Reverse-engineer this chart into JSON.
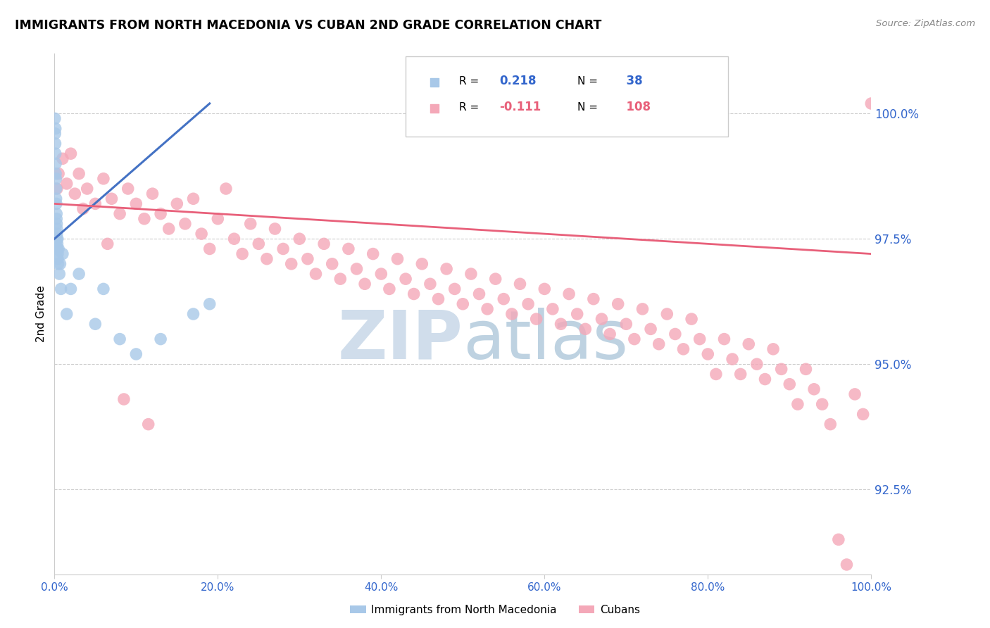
{
  "title": "IMMIGRANTS FROM NORTH MACEDONIA VS CUBAN 2ND GRADE CORRELATION CHART",
  "source_text": "Source: ZipAtlas.com",
  "ylabel": "2nd Grade",
  "xlim": [
    0.0,
    100.0
  ],
  "ylim": [
    90.8,
    101.2
  ],
  "x_ticks": [
    0.0,
    20.0,
    40.0,
    60.0,
    80.0,
    100.0
  ],
  "y_ticks_right": [
    92.5,
    95.0,
    97.5,
    100.0
  ],
  "blue_R": 0.218,
  "blue_N": 38,
  "pink_R": -0.111,
  "pink_N": 108,
  "blue_color": "#a8c8e8",
  "pink_color": "#f4a8b8",
  "blue_line_color": "#4472c4",
  "pink_line_color": "#e8607a",
  "blue_label": "Immigrants from North Macedonia",
  "pink_label": "Cubans",
  "watermark_color": "#cce0f0",
  "blue_x": [
    0.05,
    0.08,
    0.1,
    0.12,
    0.12,
    0.15,
    0.15,
    0.18,
    0.2,
    0.2,
    0.22,
    0.25,
    0.25,
    0.28,
    0.3,
    0.3,
    0.3,
    0.35,
    0.35,
    0.38,
    0.4,
    0.4,
    0.45,
    0.5,
    0.6,
    0.7,
    0.8,
    1.0,
    1.5,
    2.0,
    3.0,
    5.0,
    6.0,
    8.0,
    10.0,
    13.0,
    17.0,
    19.0
  ],
  "blue_y": [
    99.9,
    99.6,
    99.4,
    99.7,
    99.2,
    99.0,
    98.8,
    98.7,
    98.5,
    98.3,
    98.2,
    98.0,
    97.9,
    97.8,
    97.7,
    97.6,
    97.5,
    97.4,
    97.3,
    97.5,
    97.2,
    97.1,
    97.0,
    97.3,
    96.8,
    97.0,
    96.5,
    97.2,
    96.0,
    96.5,
    96.8,
    95.8,
    96.5,
    95.5,
    95.2,
    95.5,
    96.0,
    96.2
  ],
  "pink_x": [
    0.3,
    0.5,
    1.0,
    1.5,
    2.0,
    2.5,
    3.0,
    4.0,
    5.0,
    6.0,
    7.0,
    8.0,
    9.0,
    10.0,
    11.0,
    12.0,
    13.0,
    14.0,
    15.0,
    16.0,
    17.0,
    18.0,
    19.0,
    20.0,
    21.0,
    22.0,
    23.0,
    24.0,
    25.0,
    26.0,
    27.0,
    28.0,
    29.0,
    30.0,
    31.0,
    32.0,
    33.0,
    34.0,
    35.0,
    36.0,
    37.0,
    38.0,
    39.0,
    40.0,
    41.0,
    42.0,
    43.0,
    44.0,
    45.0,
    46.0,
    47.0,
    48.0,
    49.0,
    50.0,
    51.0,
    52.0,
    53.0,
    54.0,
    55.0,
    56.0,
    57.0,
    58.0,
    59.0,
    60.0,
    61.0,
    62.0,
    63.0,
    64.0,
    65.0,
    66.0,
    67.0,
    68.0,
    69.0,
    70.0,
    71.0,
    72.0,
    73.0,
    74.0,
    75.0,
    76.0,
    77.0,
    78.0,
    79.0,
    80.0,
    81.0,
    82.0,
    83.0,
    84.0,
    85.0,
    86.0,
    87.0,
    88.0,
    89.0,
    90.0,
    91.0,
    92.0,
    93.0,
    94.0,
    95.0,
    96.0,
    97.0,
    98.0,
    99.0,
    100.0,
    3.5,
    6.5,
    8.5,
    11.5
  ],
  "pink_y": [
    98.5,
    98.8,
    99.1,
    98.6,
    99.2,
    98.4,
    98.8,
    98.5,
    98.2,
    98.7,
    98.3,
    98.0,
    98.5,
    98.2,
    97.9,
    98.4,
    98.0,
    97.7,
    98.2,
    97.8,
    98.3,
    97.6,
    97.3,
    97.9,
    98.5,
    97.5,
    97.2,
    97.8,
    97.4,
    97.1,
    97.7,
    97.3,
    97.0,
    97.5,
    97.1,
    96.8,
    97.4,
    97.0,
    96.7,
    97.3,
    96.9,
    96.6,
    97.2,
    96.8,
    96.5,
    97.1,
    96.7,
    96.4,
    97.0,
    96.6,
    96.3,
    96.9,
    96.5,
    96.2,
    96.8,
    96.4,
    96.1,
    96.7,
    96.3,
    96.0,
    96.6,
    96.2,
    95.9,
    96.5,
    96.1,
    95.8,
    96.4,
    96.0,
    95.7,
    96.3,
    95.9,
    95.6,
    96.2,
    95.8,
    95.5,
    96.1,
    95.7,
    95.4,
    96.0,
    95.6,
    95.3,
    95.9,
    95.5,
    95.2,
    94.8,
    95.5,
    95.1,
    94.8,
    95.4,
    95.0,
    94.7,
    95.3,
    94.9,
    94.6,
    94.2,
    94.9,
    94.5,
    94.2,
    93.8,
    91.5,
    91.0,
    94.4,
    94.0,
    100.2,
    98.1,
    97.4,
    94.3,
    93.8
  ]
}
